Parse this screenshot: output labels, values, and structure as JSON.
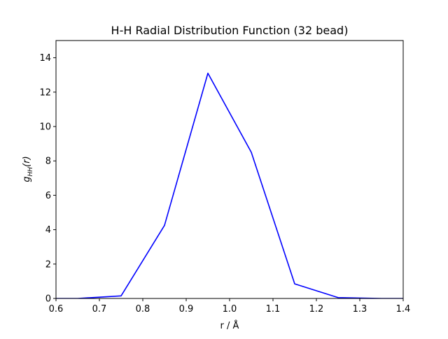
{
  "chart_data": {
    "type": "line",
    "title": "H-H Radial Distribution Function (32 bead)",
    "xlabel": "r / Å",
    "ylabel": "g_HH(r)",
    "ylabel_parts": {
      "base": "g",
      "sub": "HH",
      "suffix": "(r)"
    },
    "xlim": [
      0.6,
      1.4
    ],
    "ylim": [
      0,
      15
    ],
    "xticks": [
      0.6,
      0.7,
      0.8,
      0.9,
      1.0,
      1.1,
      1.2,
      1.3,
      1.4
    ],
    "xtick_labels": [
      "0.6",
      "0.7",
      "0.8",
      "0.9",
      "1.0",
      "1.1",
      "1.2",
      "1.3",
      "1.4"
    ],
    "yticks": [
      0,
      2,
      4,
      6,
      8,
      10,
      12,
      14
    ],
    "ytick_labels": [
      "0",
      "2",
      "4",
      "6",
      "8",
      "10",
      "12",
      "14"
    ],
    "grid": false,
    "series": [
      {
        "color": "#0000ff",
        "x": [
          0.55,
          0.65,
          0.75,
          0.85,
          0.95,
          1.05,
          1.15,
          1.25,
          1.35,
          1.45
        ],
        "y": [
          0.0,
          0.0,
          0.15,
          4.25,
          13.1,
          8.5,
          0.85,
          0.05,
          0.0,
          0.0
        ]
      }
    ]
  }
}
